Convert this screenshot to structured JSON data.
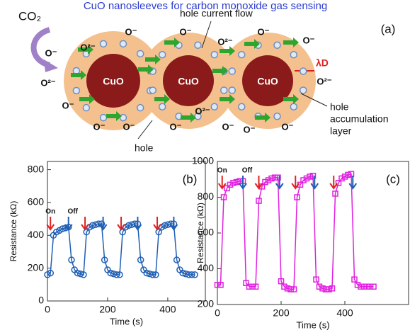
{
  "title": "CuO nanosleeves for carbon monoxide gas sensing",
  "diagram": {
    "panel_label": "(a)",
    "gas": "CO₂",
    "core_label": "CuO",
    "ions": [
      "O⁻",
      "O²⁻",
      "O⁻",
      "O²⁻",
      "O⁻",
      "O⁻",
      "O⁻",
      "O²⁻",
      "O²⁻",
      "O⁻",
      "O⁻",
      "O⁻",
      "O²⁻",
      "O⁻",
      "O⁻",
      "O⁻",
      "O⁻"
    ],
    "current_label": "hole current flow",
    "hole_label": "hole",
    "layer_label": [
      "hole",
      "accumulation",
      "layer"
    ],
    "debye_label": "λD"
  },
  "chart_data": [
    {
      "type": "line",
      "panel_label": "(b)",
      "ylabel": "Resistance (kΩ)",
      "xlabel": "Time (s)",
      "marker": "circle",
      "color": "#1f5fb4",
      "x": [
        0,
        10,
        20,
        30,
        40,
        50,
        60,
        70,
        80,
        90,
        100,
        110,
        120,
        130,
        140,
        150,
        160,
        170,
        180,
        190,
        200,
        210,
        220,
        230,
        240,
        250,
        260,
        270,
        280,
        290,
        300,
        310,
        320,
        330,
        340,
        350,
        360,
        370,
        380,
        390,
        400,
        410,
        420,
        430,
        440,
        450,
        460,
        470,
        480,
        490
      ],
      "values": [
        160,
        170,
        400,
        420,
        430,
        440,
        445,
        450,
        250,
        190,
        170,
        165,
        160,
        420,
        450,
        460,
        465,
        470,
        470,
        250,
        190,
        170,
        165,
        160,
        160,
        420,
        450,
        460,
        465,
        470,
        470,
        250,
        190,
        170,
        165,
        160,
        160,
        420,
        450,
        460,
        465,
        470,
        470,
        250,
        190,
        170,
        165,
        160,
        160,
        160
      ],
      "xlim": [
        0,
        525
      ],
      "xticks": [
        0,
        200,
        400
      ],
      "ylim": [
        0,
        850
      ],
      "yticks": [
        0,
        200,
        400,
        600,
        800
      ],
      "on_label": "On",
      "off_label": "Off",
      "on_color": "#e02020",
      "off_color": "#1f5fb4",
      "on_times": [
        10,
        125,
        245,
        365
      ],
      "off_times": [
        70,
        185,
        300,
        420
      ]
    },
    {
      "type": "line",
      "panel_label": "(c)",
      "ylabel": "Resistance (kΩ)",
      "xlabel": "Time (s)",
      "marker": "square",
      "color": "#e020e0",
      "x": [
        0,
        10,
        20,
        30,
        40,
        50,
        60,
        70,
        80,
        90,
        100,
        110,
        120,
        130,
        140,
        150,
        160,
        170,
        180,
        190,
        200,
        210,
        220,
        230,
        240,
        250,
        260,
        270,
        280,
        290,
        300,
        310,
        320,
        330,
        340,
        350,
        360,
        370,
        380,
        390,
        400,
        410,
        420,
        430,
        440,
        450,
        460,
        470,
        480,
        490
      ],
      "values": [
        310,
        310,
        800,
        850,
        870,
        880,
        885,
        890,
        890,
        320,
        300,
        300,
        300,
        780,
        860,
        885,
        895,
        905,
        910,
        910,
        330,
        300,
        290,
        285,
        285,
        800,
        870,
        895,
        905,
        915,
        920,
        340,
        300,
        290,
        285,
        285,
        290,
        820,
        880,
        905,
        915,
        925,
        930,
        340,
        310,
        300,
        300,
        300,
        300,
        300
      ],
      "xlim": [
        0,
        600
      ],
      "xticks": [
        0,
        200,
        400
      ],
      "ylim": [
        200,
        1000
      ],
      "yticks": [
        200,
        400,
        600,
        800,
        1000
      ],
      "on_label": "On",
      "off_label": "Off",
      "on_color": "#e02020",
      "off_color": "#1f5fb4",
      "on_times": [
        15,
        130,
        245,
        365
      ],
      "off_times": [
        80,
        195,
        305,
        425
      ]
    }
  ]
}
